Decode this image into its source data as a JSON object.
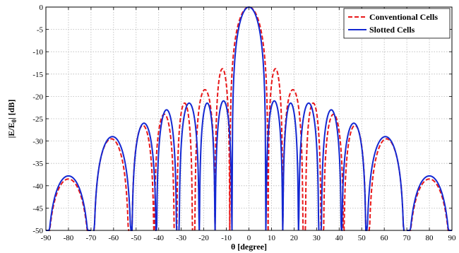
{
  "chart_data": {
    "type": "line",
    "xlabel": "θ [degree]",
    "ylabel_main": "|E/E",
    "ylabel_sub": "0",
    "ylabel_end": "| [dB]",
    "xlim": [
      -90,
      90
    ],
    "ylim": [
      -50,
      0
    ],
    "xticks": [
      -90,
      -80,
      -70,
      -60,
      -50,
      -40,
      -30,
      -20,
      -10,
      0,
      10,
      20,
      30,
      40,
      50,
      60,
      70,
      80,
      90
    ],
    "yticks": [
      0,
      -5,
      -10,
      -15,
      -20,
      -25,
      -30,
      -35,
      -40,
      -45,
      -50
    ],
    "grid": true,
    "legend_position": "top-right",
    "series": [
      {
        "name": "Conventional Cells",
        "color": "#e8191b",
        "dash": "dashed",
        "lobes": [
          [
            -90,
            -70,
            -38.5
          ],
          [
            -69,
            -53,
            -29.5
          ],
          [
            -52,
            -42,
            -26.5
          ],
          [
            -42,
            -33,
            -24
          ],
          [
            -32,
            -25,
            -21.5
          ],
          [
            -24,
            -15,
            -18.5
          ],
          [
            -15,
            -8.5,
            -13.8
          ],
          [
            -8.5,
            8.5,
            0
          ],
          [
            8.5,
            15,
            -13.8
          ],
          [
            15,
            24,
            -18.5
          ],
          [
            25,
            32,
            -21.5
          ],
          [
            33,
            42,
            -24
          ],
          [
            42,
            52,
            -26.5
          ],
          [
            53,
            69,
            -29.5
          ],
          [
            70,
            90,
            -38.5
          ]
        ]
      },
      {
        "name": "Slotted Cells",
        "color": "#1428d2",
        "dash": "solid",
        "lobes": [
          [
            -90,
            -70,
            -37.8
          ],
          [
            -69,
            -52,
            -29
          ],
          [
            -52,
            -41,
            -26
          ],
          [
            -41,
            -32,
            -23
          ],
          [
            -31,
            -22,
            -21.5
          ],
          [
            -22,
            -15,
            -21.5
          ],
          [
            -15,
            -7.5,
            -21
          ],
          [
            -7.5,
            7.5,
            0
          ],
          [
            7.5,
            15,
            -21
          ],
          [
            15,
            22,
            -21.5
          ],
          [
            22,
            31,
            -21.5
          ],
          [
            32,
            41,
            -23
          ],
          [
            41,
            52,
            -26
          ],
          [
            52,
            69,
            -29
          ],
          [
            70,
            90,
            -37.8
          ]
        ]
      }
    ]
  }
}
